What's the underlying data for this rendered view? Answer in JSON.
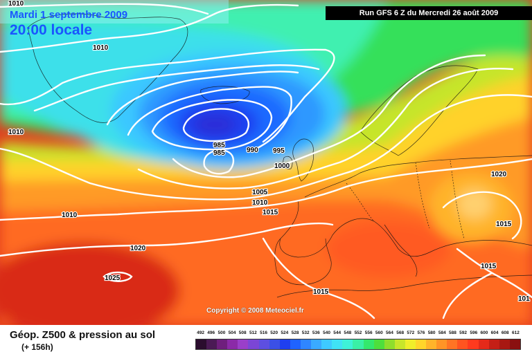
{
  "header": {
    "date": "Mardi 1 septembre 2009",
    "time": "20:00 locale",
    "run": "Run GFS 6 Z du Mercredi 26 août 2009"
  },
  "copyright": "Copyright © 2008 Meteociel.fr",
  "legend": {
    "title": "Géop. Z500 & pression au sol",
    "subtitle": "(+ 156h)",
    "ticks": [
      "492",
      "496",
      "500",
      "504",
      "508",
      "512",
      "516",
      "520",
      "524",
      "528",
      "532",
      "536",
      "540",
      "544",
      "548",
      "552",
      "556",
      "560",
      "564",
      "568",
      "572",
      "576",
      "580",
      "584",
      "588",
      "592",
      "596",
      "600",
      "604",
      "608",
      "612"
    ],
    "colors": [
      "#2b0d2e",
      "#4b1a55",
      "#6f1f7d",
      "#8b2aa8",
      "#9a3fc9",
      "#7b46d6",
      "#5d4fe0",
      "#3b50e6",
      "#1f3ff0",
      "#1f63ff",
      "#2f86ff",
      "#3aaaff",
      "#3ecaff",
      "#40e2f5",
      "#3ef2d8",
      "#3af0a6",
      "#34e86c",
      "#4edf3c",
      "#8fde2c",
      "#c8e62a",
      "#f0ee2a",
      "#ffd52a",
      "#ffb42a",
      "#ff9426",
      "#ff7424",
      "#ff5420",
      "#ff3a1e",
      "#e42a1a",
      "#c41f16",
      "#a81812",
      "#8a1010"
    ]
  },
  "pressure_labels": [
    "1010",
    "1010",
    "1010",
    "1010",
    "985",
    "985",
    "990",
    "995",
    "1000",
    "1005",
    "1010",
    "1015",
    "1020",
    "1025",
    "1015",
    "1020",
    "1015",
    "1015",
    "101"
  ]
}
